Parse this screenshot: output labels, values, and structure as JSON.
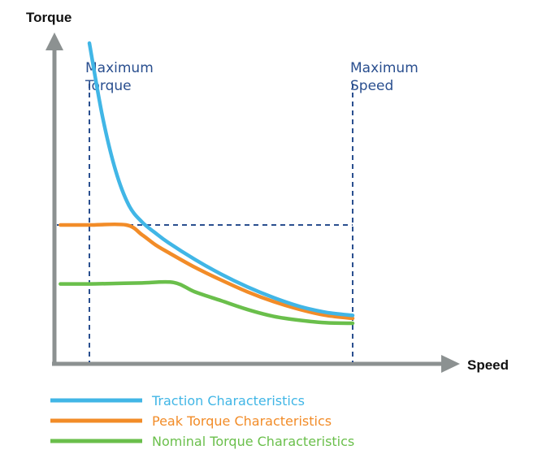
{
  "chart_data": {
    "type": "line",
    "xlabel": "Speed",
    "ylabel": "Torque",
    "grid": false,
    "legend_position": "bottom-left",
    "annotations": [
      {
        "text_lines": [
          "Maximum",
          "Torque"
        ],
        "x": 0
      },
      {
        "text_lines": [
          "Maximum",
          "Speed"
        ],
        "x": 100
      }
    ],
    "reference_lines": {
      "vertical_x": [
        0,
        100
      ],
      "horizontal_y": 100
    },
    "series": [
      {
        "name": "Traction Characteristics",
        "color": "#41b6e6",
        "x": [
          0,
          5,
          10,
          15,
          20,
          25,
          30,
          40,
          50,
          60,
          70,
          80,
          90,
          100
        ],
        "y": [
          285,
          210,
          155,
          120,
          103,
          92,
          82,
          65,
          50,
          37,
          26,
          17,
          11,
          8
        ]
      },
      {
        "name": "Peak Torque Characteristics",
        "color": "#f28c28",
        "x": [
          -11,
          0,
          14,
          20,
          25,
          30,
          40,
          50,
          60,
          70,
          80,
          90,
          100
        ],
        "y": [
          100,
          100,
          100,
          90,
          80,
          72,
          57,
          44,
          32,
          22,
          14,
          8,
          5
        ]
      },
      {
        "name": "Nominal Torque Characteristics",
        "color": "#6abf4b",
        "x": [
          -11,
          0,
          10,
          20,
          32,
          40,
          50,
          60,
          70,
          80,
          90,
          100
        ],
        "y": [
          40,
          40,
          40.5,
          41,
          41.5,
          32,
          23,
          14,
          7,
          3,
          0.5,
          0
        ]
      }
    ]
  }
}
